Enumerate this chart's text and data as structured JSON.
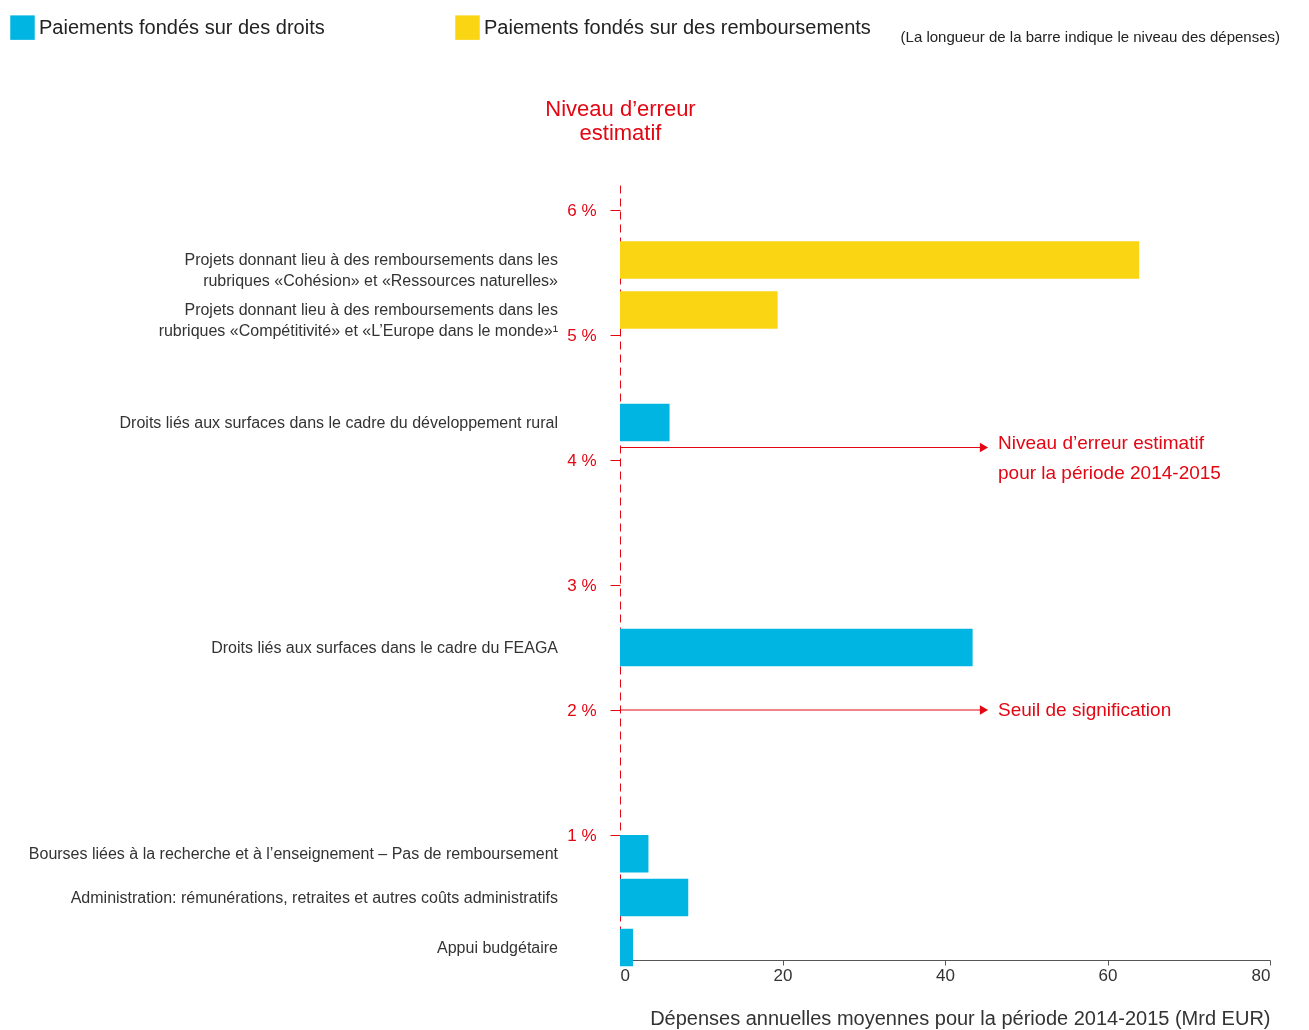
{
  "chart_data": {
    "type": "bar",
    "orientation": "horizontal",
    "x": [
      5.6,
      5.2,
      4.3,
      2.5,
      0.85,
      0.5,
      0.1
    ],
    "series": [
      {
        "name": "Paiements fondés sur des droits",
        "color": "#00b5e2",
        "values": [
          null,
          null,
          6.1,
          43.4,
          3.5,
          8.4,
          1.6
        ]
      },
      {
        "name": "Paiements fondés sur des remboursements",
        "color": "#fad514",
        "values": [
          63.9,
          19.4,
          null,
          null,
          null,
          null,
          null
        ]
      }
    ],
    "xlabel": "Dépenses annuelles moyennes pour la période 2014-2015 (Mrd EUR)",
    "ylabel": "Niveau d’erreur estimatif",
    "xlim": [
      0,
      80
    ],
    "xticks": [
      0,
      20,
      40,
      60,
      80
    ],
    "ylim": [
      0,
      6.2
    ],
    "yticks": [
      {
        "value": 1,
        "label": "1 %"
      },
      {
        "value": 2,
        "label": "2 %"
      },
      {
        "value": 3,
        "label": "3 %"
      },
      {
        "value": 4,
        "label": "4 %"
      },
      {
        "value": 5,
        "label": "5 %"
      },
      {
        "value": 6,
        "label": "6 %"
      }
    ],
    "ref_lines": [
      {
        "axis": "y",
        "value": 4.1,
        "label": "Niveau d’erreur estimatif pour la période 2014-2015",
        "color": "#e30613"
      },
      {
        "axis": "y",
        "value": 2,
        "label": "Seuil de signification",
        "color": "#e30613"
      }
    ],
    "annotations": [
      "Projets donnant lieu à des remboursements dans les rubriques «Cohésion» et «Ressources naturelles»",
      "Projets donnant lieu à des remboursements dans les rubriques «Compétitivité» et «L’Europe dans le monde»¹",
      "Droits liés aux surfaces dans le cadre du développement rural",
      "Droits liés aux surfaces dans le cadre du FEAGA",
      "Bourses liées à la recherche et à l’enseignement – Pas de remboursement",
      "Administration: rémunérations, retraites et autres coûts administratifs",
      "Appui budgétaire",
      "(La longueur de la barre indique le niveau des dépenses)"
    ],
    "legend": "top",
    "grid": false
  }
}
